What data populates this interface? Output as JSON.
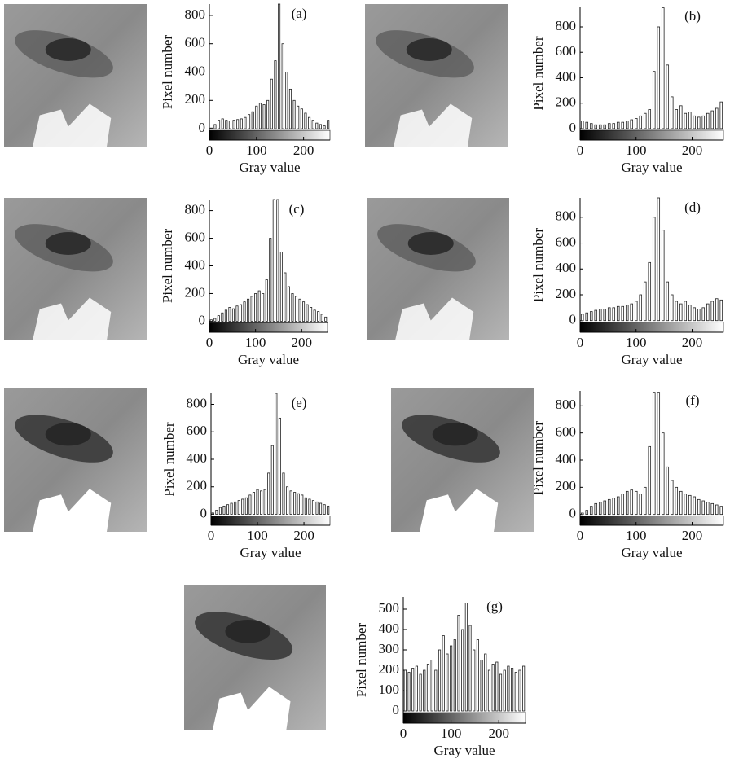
{
  "chart_data": [
    {
      "type": "histogram",
      "title": "(a)",
      "xlabel": "Gray value",
      "ylabel": "Pixel number",
      "bins": [
        0,
        8,
        16,
        24,
        32,
        40,
        48,
        56,
        64,
        72,
        80,
        88,
        96,
        104,
        112,
        120,
        128,
        136,
        144,
        152,
        160,
        168,
        176,
        184,
        192,
        200,
        208,
        216,
        224,
        232,
        240,
        248,
        256
      ],
      "values": [
        5,
        30,
        60,
        70,
        60,
        55,
        60,
        65,
        70,
        80,
        100,
        120,
        160,
        180,
        170,
        200,
        350,
        480,
        880,
        600,
        400,
        280,
        200,
        160,
        140,
        110,
        80,
        60,
        40,
        30,
        20,
        60
      ],
      "xlim": [
        0,
        256
      ],
      "ylim": [
        -80,
        880
      ],
      "xticks": [
        0,
        100,
        200
      ],
      "yticks": [
        0,
        200,
        400,
        600,
        800
      ]
    },
    {
      "type": "histogram",
      "title": "(b)",
      "xlabel": "Gray value",
      "ylabel": "Pixel number",
      "bins": [
        0,
        8,
        16,
        24,
        32,
        40,
        48,
        56,
        64,
        72,
        80,
        88,
        96,
        104,
        112,
        120,
        128,
        136,
        144,
        152,
        160,
        168,
        176,
        184,
        192,
        200,
        208,
        216,
        224,
        232,
        240,
        248,
        256
      ],
      "values": [
        60,
        50,
        40,
        30,
        30,
        30,
        40,
        40,
        50,
        50,
        60,
        70,
        80,
        100,
        120,
        150,
        450,
        800,
        950,
        500,
        250,
        150,
        180,
        120,
        130,
        100,
        90,
        100,
        120,
        140,
        160,
        210
      ],
      "xlim": [
        0,
        256
      ],
      "ylim": [
        -90,
        960
      ],
      "xticks": [
        0,
        100,
        200
      ],
      "yticks": [
        0,
        200,
        400,
        600,
        800
      ]
    },
    {
      "type": "histogram",
      "title": "(c)",
      "xlabel": "Gray value",
      "ylabel": "Pixel number",
      "bins": [
        0,
        8,
        16,
        24,
        32,
        40,
        48,
        56,
        64,
        72,
        80,
        88,
        96,
        104,
        112,
        120,
        128,
        136,
        144,
        152,
        160,
        168,
        176,
        184,
        192,
        200,
        208,
        216,
        224,
        232,
        240,
        248,
        256
      ],
      "values": [
        10,
        20,
        40,
        60,
        80,
        100,
        90,
        110,
        120,
        140,
        160,
        180,
        200,
        220,
        200,
        300,
        600,
        880,
        880,
        500,
        350,
        250,
        200,
        180,
        160,
        140,
        120,
        100,
        80,
        70,
        50,
        30
      ],
      "xlim": [
        0,
        256
      ],
      "ylim": [
        -80,
        880
      ],
      "xticks": [
        0,
        100,
        200
      ],
      "yticks": [
        0,
        200,
        400,
        600,
        800
      ]
    },
    {
      "type": "histogram",
      "title": "(d)",
      "xlabel": "Gray value",
      "ylabel": "Pixel number",
      "bins": [
        0,
        8,
        16,
        24,
        32,
        40,
        48,
        56,
        64,
        72,
        80,
        88,
        96,
        104,
        112,
        120,
        128,
        136,
        144,
        152,
        160,
        168,
        176,
        184,
        192,
        200,
        208,
        216,
        224,
        232,
        240,
        248,
        256
      ],
      "values": [
        50,
        60,
        70,
        80,
        90,
        90,
        100,
        100,
        110,
        110,
        120,
        130,
        150,
        200,
        300,
        450,
        800,
        950,
        700,
        300,
        200,
        150,
        130,
        150,
        120,
        100,
        90,
        100,
        130,
        150,
        170,
        160
      ],
      "xlim": [
        0,
        256
      ],
      "ylim": [
        -90,
        950
      ],
      "xticks": [
        0,
        100,
        200
      ],
      "yticks": [
        0,
        200,
        400,
        600,
        800
      ]
    },
    {
      "type": "histogram",
      "title": "(e)",
      "xlabel": "Gray value",
      "ylabel": "Pixel number",
      "bins": [
        0,
        8,
        16,
        24,
        32,
        40,
        48,
        56,
        64,
        72,
        80,
        88,
        96,
        104,
        112,
        120,
        128,
        136,
        144,
        152,
        160,
        168,
        176,
        184,
        192,
        200,
        208,
        216,
        224,
        232,
        240,
        248,
        256
      ],
      "values": [
        10,
        30,
        50,
        60,
        70,
        80,
        90,
        100,
        110,
        120,
        140,
        160,
        180,
        170,
        180,
        300,
        500,
        880,
        700,
        300,
        200,
        170,
        160,
        150,
        140,
        120,
        110,
        100,
        90,
        80,
        70,
        60
      ],
      "xlim": [
        0,
        256
      ],
      "ylim": [
        -80,
        880
      ],
      "xticks": [
        0,
        100,
        200
      ],
      "yticks": [
        0,
        200,
        400,
        600,
        800
      ]
    },
    {
      "type": "histogram",
      "title": "(f)",
      "xlabel": "Gray value",
      "ylabel": "Pixel number",
      "bins": [
        0,
        8,
        16,
        24,
        32,
        40,
        48,
        56,
        64,
        72,
        80,
        88,
        96,
        104,
        112,
        120,
        128,
        136,
        144,
        152,
        160,
        168,
        176,
        184,
        192,
        200,
        208,
        216,
        224,
        232,
        240,
        248,
        256
      ],
      "values": [
        10,
        30,
        60,
        80,
        90,
        100,
        110,
        120,
        130,
        150,
        170,
        180,
        170,
        150,
        200,
        500,
        900,
        900,
        600,
        350,
        250,
        200,
        170,
        150,
        140,
        130,
        110,
        100,
        90,
        80,
        70,
        60
      ],
      "xlim": [
        0,
        256
      ],
      "ylim": [
        -80,
        910
      ],
      "xticks": [
        0,
        100,
        200
      ],
      "yticks": [
        0,
        200,
        400,
        600,
        800
      ]
    },
    {
      "type": "histogram",
      "title": "(g)",
      "xlabel": "Gray value",
      "ylabel": "Pixel number",
      "bins": [
        0,
        8,
        16,
        24,
        32,
        40,
        48,
        56,
        64,
        72,
        80,
        88,
        96,
        104,
        112,
        120,
        128,
        136,
        144,
        152,
        160,
        168,
        176,
        184,
        192,
        200,
        208,
        216,
        224,
        232,
        240,
        248,
        256
      ],
      "values": [
        200,
        190,
        210,
        220,
        180,
        200,
        230,
        250,
        200,
        300,
        370,
        280,
        320,
        350,
        470,
        400,
        530,
        420,
        300,
        350,
        250,
        280,
        200,
        230,
        240,
        180,
        200,
        220,
        210,
        190,
        200,
        220
      ],
      "xlim": [
        0,
        256
      ],
      "ylim": [
        -60,
        560
      ],
      "xticks": [
        0,
        100,
        200
      ],
      "yticks": [
        0,
        100,
        200,
        300,
        400,
        500
      ]
    }
  ]
}
